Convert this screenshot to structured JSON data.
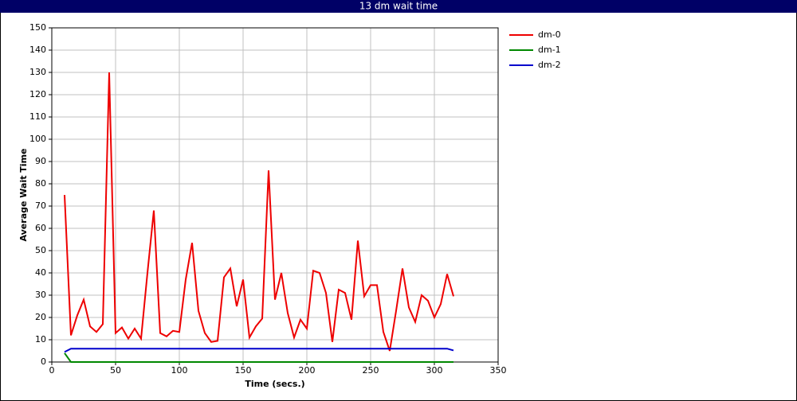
{
  "chart_data": {
    "type": "line",
    "title": "13 dm wait time",
    "x_label": "Time (secs.)",
    "y_label": "Average Wait Time",
    "x": [
      10,
      15,
      20,
      25,
      30,
      35,
      40,
      45,
      50,
      55,
      60,
      65,
      70,
      75,
      80,
      85,
      90,
      95,
      100,
      105,
      110,
      115,
      120,
      125,
      130,
      135,
      140,
      145,
      150,
      155,
      160,
      165,
      170,
      175,
      180,
      185,
      190,
      195,
      200,
      205,
      210,
      215,
      220,
      225,
      230,
      235,
      240,
      245,
      250,
      255,
      260,
      265,
      270,
      275,
      280,
      285,
      290,
      295,
      300,
      305,
      310,
      315
    ],
    "series": [
      {
        "name": "dm-0",
        "color": "#ee0000",
        "values": [
          75,
          12,
          21,
          28,
          16,
          13.5,
          17,
          130,
          13,
          15.5,
          10.5,
          15,
          10.5,
          40,
          68,
          13,
          11.5,
          14,
          13.5,
          37,
          53.5,
          23,
          13,
          9,
          9.5,
          38,
          42,
          25,
          37,
          11,
          16,
          19.5,
          86,
          28,
          40,
          22,
          11,
          19,
          15,
          41,
          40,
          31,
          9,
          32.5,
          31,
          19,
          54.5,
          29.5,
          34.5,
          34.5,
          13.5,
          5,
          23,
          42,
          24.5,
          18,
          30,
          27.5,
          20,
          26,
          39.5,
          29.5
        ]
      },
      {
        "name": "dm-1",
        "color": "#008800",
        "values": [
          4,
          0,
          0,
          0,
          0,
          0,
          0,
          0,
          0,
          0,
          0,
          0,
          0,
          0,
          0,
          0,
          0,
          0,
          0,
          0,
          0,
          0,
          0,
          0,
          0,
          0,
          0,
          0,
          0,
          0,
          0,
          0,
          0,
          0,
          0,
          0,
          0,
          0,
          0,
          0,
          0,
          0,
          0,
          0,
          0,
          0,
          0,
          0,
          0,
          0,
          0,
          0,
          0,
          0,
          0,
          0,
          0,
          0,
          0,
          0,
          0,
          0
        ]
      },
      {
        "name": "dm-2",
        "color": "#0000cc",
        "values": [
          4.5,
          6,
          6,
          6,
          6,
          6,
          6,
          6,
          6,
          6,
          6,
          6,
          6,
          6,
          6,
          6,
          6,
          6,
          6,
          6,
          6,
          6,
          6,
          6,
          6,
          6,
          6,
          6,
          6,
          6,
          6,
          6,
          6,
          6,
          6,
          6,
          6,
          6,
          6,
          6,
          6,
          6,
          6,
          6,
          6,
          6,
          6,
          6,
          6,
          6,
          6,
          6,
          6,
          6,
          6,
          6,
          6,
          6,
          6,
          6,
          6,
          5.2
        ]
      }
    ],
    "xlim": [
      0,
      350
    ],
    "ylim": [
      0,
      150
    ],
    "xticks": [
      0,
      50,
      100,
      150,
      200,
      250,
      300,
      350
    ],
    "yticks": [
      0,
      10,
      20,
      30,
      40,
      50,
      60,
      70,
      80,
      90,
      100,
      110,
      120,
      130,
      140,
      150
    ],
    "grid": true,
    "legend": "right"
  }
}
